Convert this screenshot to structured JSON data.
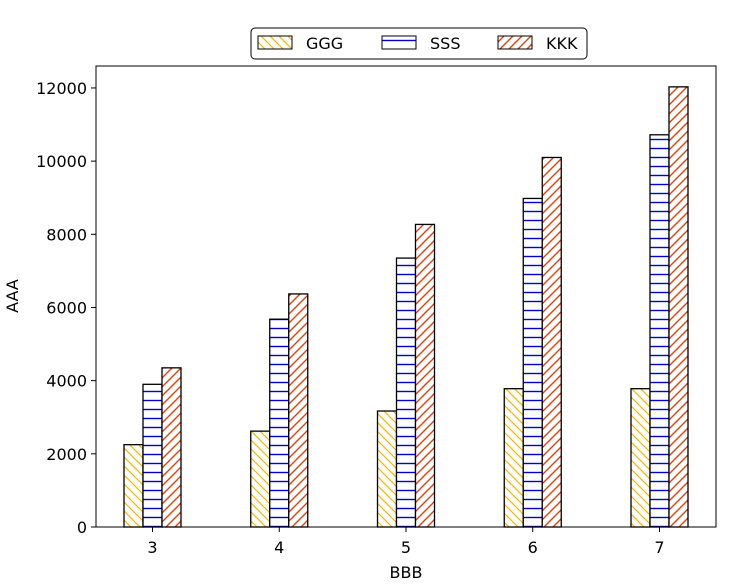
{
  "chart_data": {
    "type": "bar",
    "categories": [
      "3",
      "4",
      "5",
      "6",
      "7"
    ],
    "series": [
      {
        "name": "GGG",
        "values": [
          2250,
          2620,
          3170,
          3780,
          3780
        ],
        "color": "#f5b800",
        "hatch": "diagonal-back"
      },
      {
        "name": "SSS",
        "values": [
          3900,
          5680,
          7350,
          8980,
          10720
        ],
        "color": "#0000cc",
        "hatch": "horizontal"
      },
      {
        "name": "KKK",
        "values": [
          4350,
          6370,
          8270,
          10100,
          12030
        ],
        "color": "#e0400a",
        "hatch": "diagonal-forward"
      }
    ],
    "xlabel": "BBB",
    "ylabel": "AAA",
    "ylim": [
      0,
      12600
    ],
    "yticks": [
      "0",
      "2000",
      "4000",
      "6000",
      "8000",
      "10000",
      "12000"
    ],
    "grid": false,
    "legend_position": "top-center"
  }
}
